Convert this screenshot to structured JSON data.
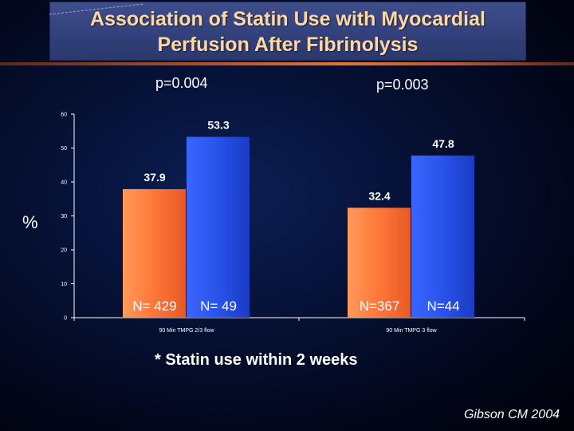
{
  "slide": {
    "title": "Association of Statin Use with Myocardial Perfusion After Fibrinolysis",
    "p_values": [
      "p=0.004",
      "p=0.003"
    ],
    "y_unit_label": "%",
    "footnote": "* Statin use within 2 weeks",
    "credit": "Gibson CM 2004"
  },
  "colors": {
    "no_statin": "#ff7a3c",
    "statin": "#2a55ee",
    "title_text": "#ffd9a0",
    "divider": "#e8752f"
  },
  "chart_data": {
    "type": "bar",
    "categories": [
      "90 Min TMPG 2/3 flow",
      "90 Min TMPG 3 flow"
    ],
    "series": [
      {
        "values": [
          37.9,
          32.4
        ],
        "n_labels": [
          "N= 429",
          "N=367"
        ],
        "color": "#ff7a3c"
      },
      {
        "values": [
          53.3,
          47.8
        ],
        "n_labels": [
          "N= 49",
          "N=44"
        ],
        "color": "#2a55ee"
      }
    ],
    "ylim": [
      0,
      60
    ],
    "yticks": [
      0,
      10,
      20,
      30,
      40,
      50,
      60
    ],
    "ylabel": "%",
    "grid": false
  }
}
